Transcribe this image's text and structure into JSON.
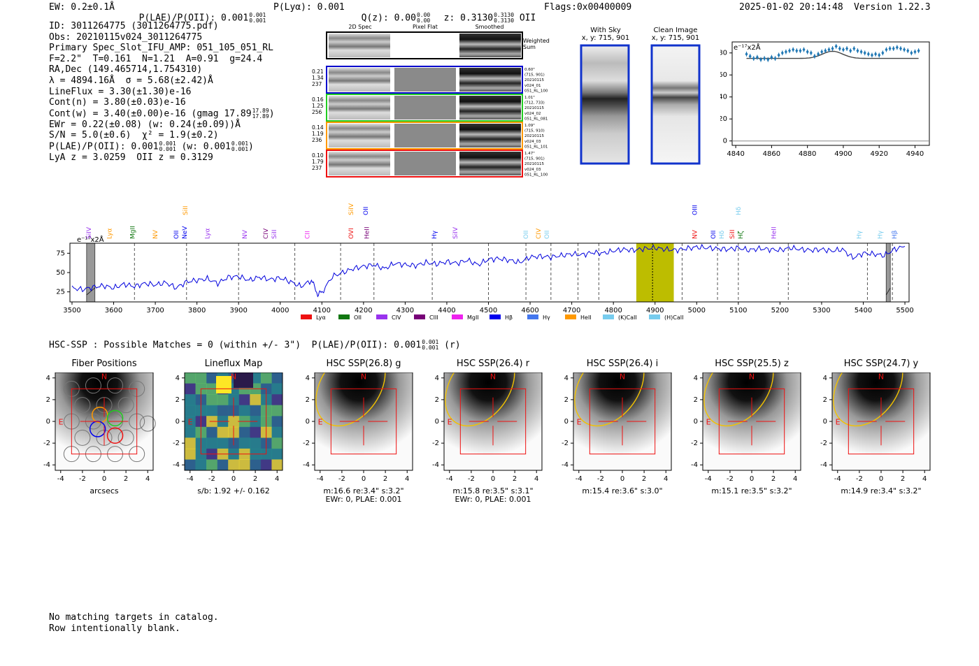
{
  "header": {
    "ew": "EW: 0.2±0.1Å",
    "plae": "P(LAE)/P(OII): 0.001",
    "plae_hi": "0.001",
    "plae_lo": "0.001",
    "plya": "P(Lyα): 0.001",
    "qz": "Q(z): 0.00",
    "qz_hi": "0.00",
    "qz_lo": "0.00",
    "z": "z: 0.3130",
    "z_hi": "0.3130",
    "z_lo": "0.3130",
    "z_tag": "OII",
    "flags": "Flags:0x00400009",
    "datetime": "2025-01-02 20:14:48",
    "version": "Version 1.22.3"
  },
  "info": {
    "id": "ID: 3011264775 (3011264775.pdf)",
    "obs": "Obs: 20210115v024_3011264775",
    "primary": "Primary Spec_Slot_IFU_AMP: 051_105_051_RL",
    "fit": "F=2.2\"  T=0.161  N=1.21  A=0.91  g=24.4",
    "radec": "RA,Dec (149.465714,1.754310)",
    "lambda": "λ = 4894.16Å  σ = 5.68(±2.42)Å",
    "lineflux": "LineFlux = 3.30(±1.30)e-16",
    "contn": "Cont(n) = 3.80(±0.03)e-16",
    "contw": "Cont(w) = 3.40(±0.00)e-16 (gmag 17.89",
    "contw_hi": "17.89",
    "contw_lo": "17.89",
    "contw_close": ")",
    "ewr": "EWr = 0.22(±0.08) (w: 0.24(±0.09))Å",
    "sn": "S/N = 5.0(±0.6)  χ² = 1.9(±0.2)",
    "plae": "P(LAE)/P(OII): 0.001",
    "plae_hi": "0.001",
    "plae_lo": "0.001",
    "plae_w": " (w: 0.001",
    "plae_w_hi": "0.001",
    "plae_w_lo": "0.001",
    "plae_close": ")",
    "lyaz": "LyA z = 3.0259  OII z = 0.3129"
  },
  "cutouts": {
    "col_2d": "2D Spec",
    "col_flat": "Pixel Flat",
    "col_smooth": "Smoothed",
    "weighted": "Weighted",
    "sum": "Sum",
    "rows": [
      {
        "left": [
          "0.21",
          "1.34",
          "237"
        ],
        "right": [
          "0.60\"",
          "(715, 901)",
          "20210115",
          "v024_01",
          "051_RL_100"
        ],
        "color": "#0000cc"
      },
      {
        "left": [
          "0.16",
          "1.25",
          "256"
        ],
        "right": [
          "1.01\"",
          "(712, 733)",
          "20210115",
          "v024_02",
          "051_RL_081"
        ],
        "color": "#22cc22"
      },
      {
        "left": [
          "0.14",
          "1.19",
          "236"
        ],
        "right": [
          "1.09\"",
          "(715, 910)",
          "20210115",
          "v024_03",
          "051_RL_101"
        ],
        "color": "#ff9900"
      },
      {
        "left": [
          "0.10",
          "1.79",
          "237"
        ],
        "right": [
          "1.47\"",
          "(715, 901)",
          "20210115",
          "v024_03",
          "051_RL_100"
        ],
        "color": "#ee1111"
      }
    ]
  },
  "sky": {
    "with_sky": "With Sky",
    "with_sky_xy": "x, y: 715, 901",
    "clean": "Clean Image",
    "clean_xy": "x, y: 715, 901"
  },
  "zoom_chart": {
    "unit": "e⁻¹⁷x2Å",
    "type": "scatter",
    "xlim": [
      4838,
      4948
    ],
    "ylim": [
      -4,
      90
    ],
    "xticks": [
      4840,
      4860,
      4880,
      4900,
      4920,
      4940
    ],
    "yticks": [
      0,
      20,
      40,
      60,
      80
    ],
    "points_x": [
      4846,
      4848,
      4850,
      4852,
      4854,
      4856,
      4858,
      4860,
      4862,
      4864,
      4866,
      4868,
      4870,
      4872,
      4874,
      4876,
      4878,
      4880,
      4882,
      4884,
      4886,
      4888,
      4890,
      4892,
      4894,
      4896,
      4898,
      4900,
      4902,
      4904,
      4906,
      4908,
      4910,
      4912,
      4914,
      4916,
      4918,
      4920,
      4922,
      4924,
      4926,
      4928,
      4930,
      4932,
      4934,
      4936,
      4938,
      4940,
      4942
    ],
    "points_y": [
      79,
      77,
      75,
      76,
      74,
      75,
      74,
      76,
      75,
      78,
      80,
      81,
      82,
      83,
      82,
      82,
      83,
      81,
      80,
      77,
      79,
      81,
      82,
      83,
      84,
      86,
      84,
      83,
      84,
      82,
      84,
      82,
      81,
      80,
      79,
      78,
      79,
      78,
      80,
      83,
      84,
      84,
      85,
      84,
      83,
      82,
      80,
      81,
      82
    ],
    "model_peak": 4894,
    "model_sigma": 5.68,
    "model_base": 75,
    "model_amp": 6.5
  },
  "spectrum": {
    "type": "line",
    "unit": "e⁻¹⁷x2Å",
    "xlim": [
      3495,
      5510
    ],
    "ylim": [
      12,
      88
    ],
    "xticks": [
      3500,
      3600,
      3700,
      3800,
      3900,
      4000,
      4100,
      4200,
      4300,
      4400,
      4500,
      4600,
      4700,
      4800,
      4900,
      5000,
      5100,
      5200,
      5300,
      5400,
      5500
    ],
    "yticks": [
      25,
      50,
      75
    ],
    "legend": [
      {
        "label": "Lyα",
        "color": "#ee1111"
      },
      {
        "label": "OII",
        "color": "#117711"
      },
      {
        "label": "CIV",
        "color": "#9933ee"
      },
      {
        "label": "CIII",
        "color": "#770077"
      },
      {
        "label": "MgII",
        "color": "#ee22ee"
      },
      {
        "label": "Hβ",
        "color": "#0000ee"
      },
      {
        "label": "Hγ",
        "color": "#4477ee"
      },
      {
        "label": "HeII",
        "color": "#ff9900"
      },
      {
        "label": "(K)CaII",
        "color": "#77ccee"
      },
      {
        "label": "(H)CaII",
        "color": "#77ccee"
      }
    ],
    "lines": [
      {
        "label": "SiIV",
        "x": 3540,
        "row": 1,
        "color": "#9933ee"
      },
      {
        "label": "Lyα",
        "x": 3590,
        "row": 1,
        "color": "#ff9900"
      },
      {
        "label": "MgII",
        "x": 3645,
        "row": 1,
        "color": "#117711"
      },
      {
        "label": "NV",
        "x": 3700,
        "row": 1,
        "color": "#ff9900"
      },
      {
        "label": "OII",
        "x": 3750,
        "row": 1,
        "color": "#0000ee"
      },
      {
        "label": "SiII",
        "x": 3772,
        "row": 3,
        "color": "#ff9900"
      },
      {
        "label": "NeV",
        "x": 3770,
        "row": 1,
        "color": "#0000ee"
      },
      {
        "label": "Lyα",
        "x": 3825,
        "row": 1,
        "color": "#9933ee"
      },
      {
        "label": "NV",
        "x": 3915,
        "row": 1,
        "color": "#9933ee"
      },
      {
        "label": "CIV",
        "x": 3965,
        "row": 1,
        "color": "#770077"
      },
      {
        "label": "SiII",
        "x": 3985,
        "row": 1,
        "color": "#9933ee"
      },
      {
        "label": "CII",
        "x": 4065,
        "row": 1,
        "color": "#ee22ee"
      },
      {
        "label": "SiIV",
        "x": 4170,
        "row": 3,
        "color": "#ff9900"
      },
      {
        "label": "OII",
        "x": 4205,
        "row": 3,
        "color": "#0000ee"
      },
      {
        "label": "OVI",
        "x": 4170,
        "row": 1,
        "color": "#ee1111"
      },
      {
        "label": "HeII",
        "x": 4208,
        "row": 1,
        "color": "#770077"
      },
      {
        "label": "Hγ",
        "x": 4370,
        "row": 1,
        "color": "#0000ee"
      },
      {
        "label": "SiIV",
        "x": 4420,
        "row": 1,
        "color": "#9933ee"
      },
      {
        "label": "OII",
        "x": 4590,
        "row": 1,
        "color": "#77ccee"
      },
      {
        "label": "CIV",
        "x": 4620,
        "row": 1,
        "color": "#ff9900"
      },
      {
        "label": "OII",
        "x": 4640,
        "row": 1,
        "color": "#77ccee"
      },
      {
        "label": "OIII",
        "x": 4995,
        "row": 3,
        "color": "#0000ee"
      },
      {
        "label": "NV",
        "x": 4995,
        "row": 1,
        "color": "#ee1111"
      },
      {
        "label": "OII",
        "x": 5040,
        "row": 1,
        "color": "#0000ee"
      },
      {
        "label": "Hδ",
        "x": 5060,
        "row": 1,
        "color": "#77ccee"
      },
      {
        "label": "SiII",
        "x": 5085,
        "row": 1,
        "color": "#ee1111"
      },
      {
        "label": "Hζ",
        "x": 5105,
        "row": 1,
        "color": "#117711"
      },
      {
        "label": "Hδ",
        "x": 5100,
        "row": 3,
        "color": "#77ccee"
      },
      {
        "label": "HeII",
        "x": 5185,
        "row": 1,
        "color": "#9933ee"
      },
      {
        "label": "Hγ",
        "x": 5390,
        "row": 1,
        "color": "#77ccee"
      },
      {
        "label": "Hγ",
        "x": 5440,
        "row": 1,
        "color": "#77ccee"
      },
      {
        "label": "Hβ",
        "x": 5475,
        "row": 1,
        "color": "#4477ee"
      }
    ],
    "dashed_x": [
      3650,
      3775,
      3900,
      4035,
      4145,
      4225,
      4365,
      4500,
      4590,
      4650,
      4715,
      4765,
      4965,
      5050,
      5100,
      5220,
      5410,
      5470
    ],
    "band": [
      4855,
      4945
    ],
    "center": 4894,
    "masks": [
      [
        3535,
        3555
      ],
      [
        5455,
        5465
      ]
    ],
    "x": [
      3500,
      3525,
      3550,
      3575,
      3600,
      3625,
      3650,
      3675,
      3700,
      3725,
      3750,
      3775,
      3800,
      3825,
      3850,
      3875,
      3900,
      3925,
      3950,
      3975,
      4000,
      4025,
      4050,
      4075,
      4090,
      4100,
      4125,
      4150,
      4175,
      4200,
      4225,
      4250,
      4275,
      4300,
      4325,
      4350,
      4375,
      4400,
      4425,
      4450,
      4475,
      4500,
      4525,
      4550,
      4575,
      4600,
      4625,
      4650,
      4675,
      4700,
      4725,
      4750,
      4775,
      4800,
      4825,
      4850,
      4875,
      4900,
      4925,
      4950,
      4975,
      5000,
      5025,
      5050,
      5075,
      5100,
      5125,
      5150,
      5175,
      5200,
      5225,
      5250,
      5275,
      5300,
      5325,
      5350,
      5375,
      5400,
      5425,
      5450,
      5475,
      5500
    ],
    "y": [
      30,
      28,
      31,
      33,
      30,
      35,
      32,
      36,
      34,
      37,
      30,
      38,
      40,
      42,
      36,
      44,
      45,
      40,
      44,
      41,
      43,
      38,
      32,
      40,
      22,
      24,
      45,
      50,
      55,
      58,
      60,
      55,
      62,
      60,
      59,
      63,
      61,
      64,
      62,
      66,
      60,
      67,
      68,
      66,
      63,
      70,
      71,
      70,
      72,
      74,
      73,
      76,
      75,
      78,
      80,
      79,
      81,
      82,
      80,
      79,
      81,
      83,
      82,
      81,
      80,
      82,
      79,
      81,
      80,
      79,
      82,
      80,
      79,
      80,
      78,
      80,
      69,
      75,
      74,
      72,
      80,
      84
    ]
  },
  "hsc": {
    "title": "HSC-SSP : Possible Matches = 0 (within +/- 3\")  P(LAE)/P(OII): 0.001",
    "plae_hi": "0.001",
    "plae_lo": "0.001",
    "band": "(r)",
    "ticks": [
      -4,
      -2,
      0,
      2,
      4
    ],
    "north": "N",
    "east": "E",
    "panels": [
      {
        "title": "Fiber Positions",
        "sub1": "arcsecs",
        "sub2": ""
      },
      {
        "title": "Lineflux Map",
        "sub1": "s/b: 1.92 +/- 0.162",
        "sub2": ""
      },
      {
        "title": "HSC SSP(26.8) g",
        "sub1": "m:16.6  re:3.4\"  s:3.2\"",
        "sub2": "EWr: 0, PLAE: 0.001"
      },
      {
        "title": "HSC SSP(26.4) r",
        "sub1": "m:15.8  re:3.5\"  s:3.1\"",
        "sub2": "EWr: 0, PLAE: 0.001"
      },
      {
        "title": "HSC SSP(26.4) i",
        "sub1": "m:15.4  re:3.6\"  s:3.0\"",
        "sub2": ""
      },
      {
        "title": "HSC SSP(25.5) z",
        "sub1": "m:15.1  re:3.5\"  s:3.2\"",
        "sub2": ""
      },
      {
        "title": "HSC SSP(24.7) y",
        "sub1": "m:14.9  re:3.4\"  s:3.2\"",
        "sub2": ""
      }
    ]
  },
  "footer": {
    "line1": "No matching targets in catalog.",
    "line2": "Row intentionally blank."
  }
}
